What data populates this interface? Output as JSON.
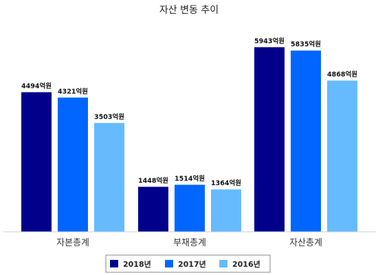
{
  "chart_data": {
    "type": "bar",
    "title": "자산 변동 추이",
    "categories": [
      "자본총계",
      "부채총계",
      "자산총계"
    ],
    "series": [
      {
        "name": "2018년",
        "color": "#00008B",
        "values": [
          4494,
          1448,
          5943
        ],
        "labels": [
          "4494억원",
          "1448억원",
          "5943억원"
        ]
      },
      {
        "name": "2017년",
        "color": "#0066FF",
        "values": [
          4321,
          1514,
          5835
        ],
        "labels": [
          "4321억원",
          "1514억원",
          "5835억원"
        ]
      },
      {
        "name": "2016년",
        "color": "#66BBFF",
        "values": [
          3503,
          1364,
          4868
        ],
        "labels": [
          "3503억원",
          "1364억원",
          "4868억원"
        ]
      }
    ],
    "ylim": [
      0,
      6800
    ],
    "grid": false,
    "legend_position": "bottom"
  }
}
